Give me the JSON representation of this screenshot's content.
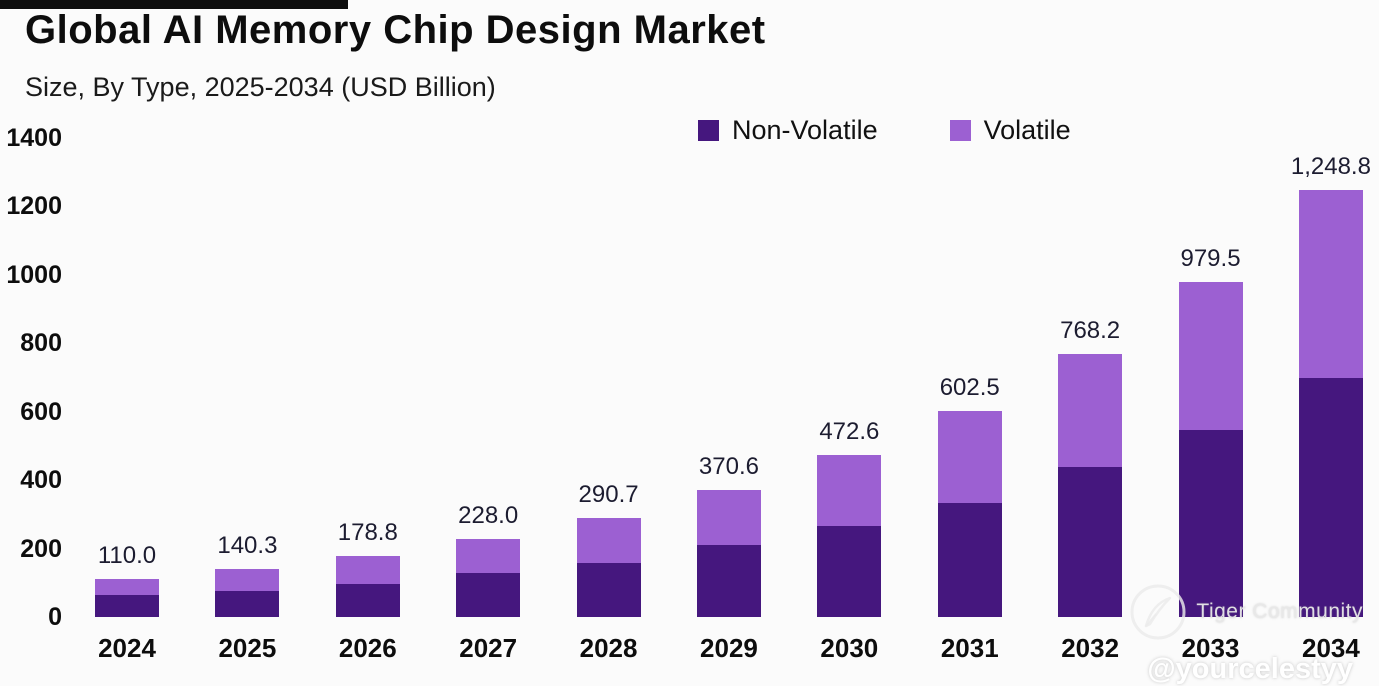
{
  "watermark": {
    "brand": "Tiger Community",
    "handle": "@yourcelestyy"
  },
  "chart_data": {
    "type": "bar",
    "stacked": true,
    "title": "Global AI Memory Chip Design Market",
    "subtitle": "Size, By Type, 2025-2034 (USD Billion)",
    "categories": [
      "2024",
      "2025",
      "2026",
      "2027",
      "2028",
      "2029",
      "2030",
      "2031",
      "2032",
      "2033",
      "2034"
    ],
    "totals": [
      110.0,
      140.3,
      178.8,
      228.0,
      290.7,
      370.6,
      472.6,
      602.5,
      768.2,
      979.5,
      1248.8
    ],
    "total_labels": [
      "110.0",
      "140.3",
      "178.8",
      "228.0",
      "290.7",
      "370.6",
      "472.6",
      "602.5",
      "768.2",
      "979.5",
      "1,248.8"
    ],
    "series": [
      {
        "name": "Non-Volatile",
        "color": "#45177e",
        "values": [
          63.0,
          76.0,
          97.0,
          130.0,
          158.0,
          210.0,
          266.0,
          333.0,
          437.0,
          548.0,
          700.0
        ]
      },
      {
        "name": "Volatile",
        "color": "#9c60d2",
        "values": [
          47.0,
          64.3,
          81.8,
          98.0,
          132.7,
          160.6,
          206.6,
          269.5,
          331.2,
          431.5,
          548.8
        ]
      }
    ],
    "ylabel": "",
    "xlabel": "",
    "ylim": [
      0,
      1400
    ],
    "yticks": [
      0,
      200,
      400,
      600,
      800,
      1000,
      1200,
      1400
    ],
    "legend_position": "top",
    "grid": false
  }
}
